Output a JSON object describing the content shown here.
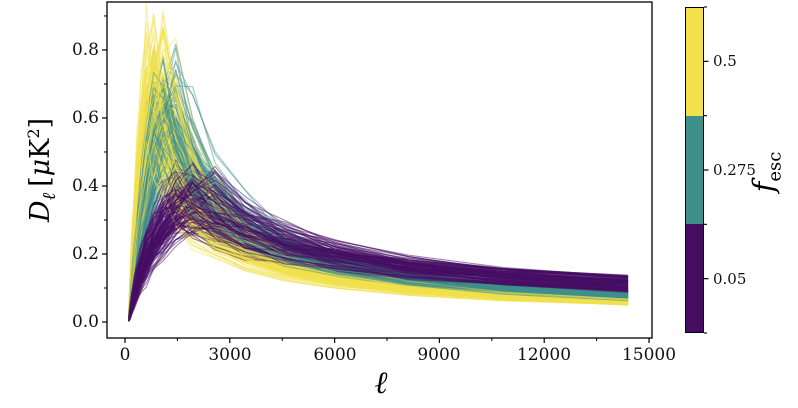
{
  "figure": {
    "background": "#ffffff",
    "title": ""
  },
  "chart_data": {
    "type": "line",
    "title": "",
    "xlabel": "ℓ",
    "ylabel_parts": {
      "D": "D",
      "sub": "ℓ",
      "open": "[",
      "mu": "μ",
      "K": "K",
      "sup": "2",
      "close": "]"
    },
    "x_ticks": [
      0,
      3000,
      6000,
      9000,
      12000,
      15000
    ],
    "x_tick_labels": [
      "0",
      "3000",
      "6000",
      "9000",
      "12000",
      "15000"
    ],
    "x_minor_ticks": [
      1500,
      4500,
      7500,
      10500,
      13500
    ],
    "y_ticks": [
      0.0,
      0.2,
      0.4,
      0.6,
      0.8
    ],
    "y_tick_labels": [
      "0.0",
      "0.2",
      "0.4",
      "0.6",
      "0.8"
    ],
    "y_minor_ticks": [
      0.1,
      0.3,
      0.5,
      0.7,
      0.9
    ],
    "xlim": [
      -515,
      15085
    ],
    "ylim": [
      -0.047,
      0.941
    ],
    "grid": false,
    "axis_color": "#000000",
    "ensemble": {
      "seed": 42,
      "ell_min": 110,
      "ell_max": 14400,
      "points_per_curve": 18,
      "line_alpha": 0.5,
      "line_width": 1.1,
      "groups": [
        {
          "f_esc": 0.5,
          "color": "#f2e14d",
          "n": 140,
          "peak_amp": [
            0.5,
            0.9
          ],
          "peak_ell": [
            600,
            1400
          ],
          "end_val": [
            0.05,
            0.068
          ]
        },
        {
          "f_esc": 0.275,
          "color": "#3f908b",
          "n": 120,
          "peak_amp": [
            0.44,
            0.78
          ],
          "peak_ell": [
            850,
            1800
          ],
          "end_val": [
            0.063,
            0.088
          ]
        },
        {
          "f_esc": 0.05,
          "color": "#450e63",
          "n": 130,
          "peak_amp": [
            0.3,
            0.47
          ],
          "peak_ell": [
            1400,
            2600
          ],
          "end_val": [
            0.086,
            0.137
          ]
        }
      ]
    },
    "colorbar": {
      "label_f": "f",
      "label_sub": "esc",
      "orientation": "vertical",
      "bands": [
        {
          "f_esc": 0.5,
          "color": "#f2e14d"
        },
        {
          "f_esc": 0.275,
          "color": "#3f908b"
        },
        {
          "f_esc": 0.05,
          "color": "#450e63"
        }
      ],
      "ticks": [
        {
          "label": "0.5"
        },
        {
          "label": "0.275"
        },
        {
          "label": "0.05"
        }
      ]
    }
  }
}
